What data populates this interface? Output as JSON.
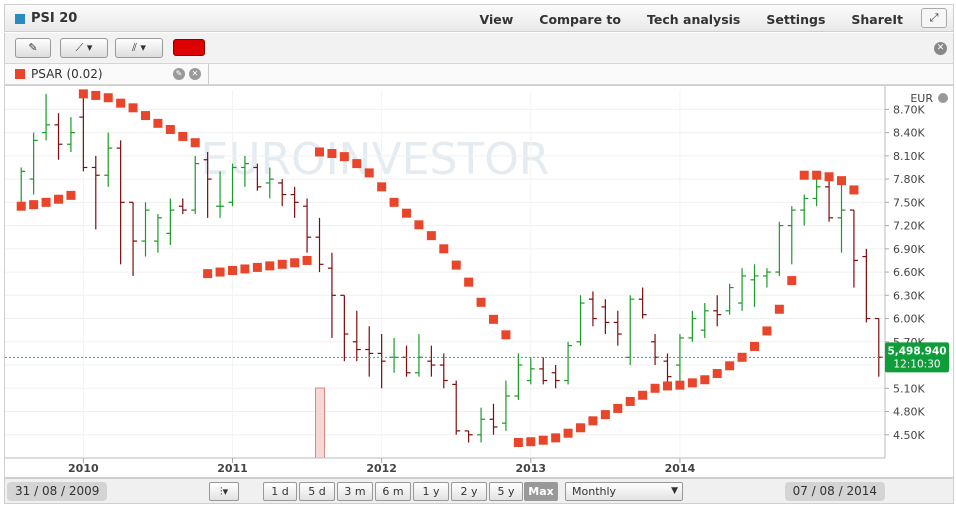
{
  "header": {
    "title": "PSI 20",
    "menu": [
      "View",
      "Compare to",
      "Tech analysis",
      "Settings",
      "ShareIt"
    ],
    "fullscreen_icon": "expand-icon"
  },
  "indicator": {
    "label": "PSAR (0.02)",
    "color": "#e8452a"
  },
  "watermark": "EUROINVESTOR",
  "bottom": {
    "start_date": "31 / 08 / 2009",
    "end_date": "07 / 08 / 2014",
    "ranges": [
      "1 d",
      "5 d",
      "3 m",
      "6 m",
      "1 y",
      "2 y",
      "5 y",
      "Max"
    ],
    "active_range": "Max",
    "interval": "Monthly"
  },
  "chart_data": {
    "type": "ohlc",
    "currency": "EUR",
    "last_value_label": "5,498.940",
    "last_time_label": "12:10:30",
    "last_value": 5498.94,
    "ylim": [
      4200,
      8950
    ],
    "yticks": [
      4500,
      4800,
      5100,
      5400,
      5700,
      6000,
      6300,
      6600,
      6900,
      7200,
      7500,
      7800,
      8100,
      8400,
      8700
    ],
    "ytick_labels": [
      "4.50K",
      "4.80K",
      "5.10K",
      "5.40K",
      "5.70K",
      "6.00K",
      "6.30K",
      "6.60K",
      "6.90K",
      "7.20K",
      "7.50K",
      "7.80K",
      "8.10K",
      "8.40K",
      "8.70K"
    ],
    "x_range": [
      "2009-08",
      "2014-08"
    ],
    "x_labels": [
      {
        "date": "2010-01",
        "label": "2010"
      },
      {
        "date": "2011-01",
        "label": "2011"
      },
      {
        "date": "2012-01",
        "label": "2012"
      },
      {
        "date": "2013-01",
        "label": "2013"
      },
      {
        "date": "2014-01",
        "label": "2014"
      }
    ],
    "bars": [
      {
        "d": "2009-08",
        "o": 7450,
        "h": 7950,
        "l": 7400,
        "c": 7900
      },
      {
        "d": "2009-09",
        "o": 7800,
        "h": 8400,
        "l": 7600,
        "c": 8300
      },
      {
        "d": "2009-10",
        "o": 8400,
        "h": 8900,
        "l": 8300,
        "c": 8500
      },
      {
        "d": "2009-11",
        "o": 8500,
        "h": 8650,
        "l": 8050,
        "c": 8250
      },
      {
        "d": "2009-12",
        "o": 8250,
        "h": 8600,
        "l": 8150,
        "c": 8400
      },
      {
        "d": "2010-01",
        "o": 8600,
        "h": 8950,
        "l": 7900,
        "c": 7950
      },
      {
        "d": "2010-02",
        "o": 7950,
        "h": 8100,
        "l": 7150,
        "c": 7850
      },
      {
        "d": "2010-03",
        "o": 7850,
        "h": 8400,
        "l": 7700,
        "c": 8200
      },
      {
        "d": "2010-04",
        "o": 8200,
        "h": 8300,
        "l": 6700,
        "c": 7500
      },
      {
        "d": "2010-05",
        "o": 7500,
        "h": 7500,
        "l": 6550,
        "c": 7000
      },
      {
        "d": "2010-06",
        "o": 7000,
        "h": 7500,
        "l": 6800,
        "c": 7400
      },
      {
        "d": "2010-07",
        "o": 7000,
        "h": 7350,
        "l": 6850,
        "c": 7300
      },
      {
        "d": "2010-08",
        "o": 7100,
        "h": 7550,
        "l": 6950,
        "c": 7400
      },
      {
        "d": "2010-09",
        "o": 7450,
        "h": 7550,
        "l": 7350,
        "c": 7400
      },
      {
        "d": "2010-10",
        "o": 7400,
        "h": 8100,
        "l": 7350,
        "c": 8000
      },
      {
        "d": "2010-11",
        "o": 8050,
        "h": 8150,
        "l": 7300,
        "c": 7800
      },
      {
        "d": "2010-12",
        "o": 7450,
        "h": 7900,
        "l": 7300,
        "c": 7450
      },
      {
        "d": "2011-01",
        "o": 7500,
        "h": 8000,
        "l": 7450,
        "c": 7950
      },
      {
        "d": "2011-02",
        "o": 7950,
        "h": 8100,
        "l": 7700,
        "c": 8000
      },
      {
        "d": "2011-03",
        "o": 7950,
        "h": 8000,
        "l": 7650,
        "c": 7700
      },
      {
        "d": "2011-04",
        "o": 7750,
        "h": 7950,
        "l": 7550,
        "c": 7800
      },
      {
        "d": "2011-05",
        "o": 7750,
        "h": 7800,
        "l": 7450,
        "c": 7600
      },
      {
        "d": "2011-06",
        "o": 7600,
        "h": 7700,
        "l": 7300,
        "c": 7500
      },
      {
        "d": "2011-07",
        "o": 7450,
        "h": 7550,
        "l": 6850,
        "c": 7050
      },
      {
        "d": "2011-08",
        "o": 7050,
        "h": 7300,
        "l": 6600,
        "c": 6700
      },
      {
        "d": "2011-09",
        "o": 6650,
        "h": 6850,
        "l": 5750,
        "c": 6300
      },
      {
        "d": "2011-10",
        "o": 6300,
        "h": 6300,
        "l": 5450,
        "c": 5800
      },
      {
        "d": "2011-11",
        "o": 5700,
        "h": 6100,
        "l": 5450,
        "c": 5600
      },
      {
        "d": "2011-12",
        "o": 5600,
        "h": 5900,
        "l": 5250,
        "c": 5550
      },
      {
        "d": "2012-01",
        "o": 5550,
        "h": 5800,
        "l": 5100,
        "c": 5450
      },
      {
        "d": "2012-02",
        "o": 5500,
        "h": 5750,
        "l": 5300,
        "c": 5500
      },
      {
        "d": "2012-03",
        "o": 5500,
        "h": 5650,
        "l": 5250,
        "c": 5300
      },
      {
        "d": "2012-04",
        "o": 5300,
        "h": 5800,
        "l": 5250,
        "c": 5500
      },
      {
        "d": "2012-05",
        "o": 5450,
        "h": 5650,
        "l": 5250,
        "c": 5400
      },
      {
        "d": "2012-06",
        "o": 5400,
        "h": 5550,
        "l": 5100,
        "c": 5200
      },
      {
        "d": "2012-07",
        "o": 5150,
        "h": 5200,
        "l": 4500,
        "c": 4550
      },
      {
        "d": "2012-08",
        "o": 4550,
        "h": 4550,
        "l": 4400,
        "c": 4500
      },
      {
        "d": "2012-09",
        "o": 4500,
        "h": 4850,
        "l": 4400,
        "c": 4700
      },
      {
        "d": "2012-10",
        "o": 4700,
        "h": 4900,
        "l": 4500,
        "c": 4600
      },
      {
        "d": "2012-11",
        "o": 4650,
        "h": 5200,
        "l": 4550,
        "c": 5000
      },
      {
        "d": "2012-12",
        "o": 5000,
        "h": 5550,
        "l": 4950,
        "c": 5400
      },
      {
        "d": "2013-01",
        "o": 5200,
        "h": 5500,
        "l": 5150,
        "c": 5350
      },
      {
        "d": "2013-02",
        "o": 5350,
        "h": 5500,
        "l": 5150,
        "c": 5200
      },
      {
        "d": "2013-03",
        "o": 5300,
        "h": 5400,
        "l": 5100,
        "c": 5200
      },
      {
        "d": "2013-04",
        "o": 5200,
        "h": 5700,
        "l": 5150,
        "c": 5650
      },
      {
        "d": "2013-05",
        "o": 5700,
        "h": 6300,
        "l": 5650,
        "c": 6200
      },
      {
        "d": "2013-06",
        "o": 6250,
        "h": 6350,
        "l": 5900,
        "c": 6000
      },
      {
        "d": "2013-07",
        "o": 6150,
        "h": 6250,
        "l": 5800,
        "c": 5950
      },
      {
        "d": "2013-08",
        "o": 5950,
        "h": 6100,
        "l": 5650,
        "c": 5800
      },
      {
        "d": "2013-09",
        "o": 5500,
        "h": 6300,
        "l": 5400,
        "c": 6250
      },
      {
        "d": "2013-10",
        "o": 6250,
        "h": 6400,
        "l": 6000,
        "c": 6050
      },
      {
        "d": "2013-11",
        "o": 5700,
        "h": 5800,
        "l": 5400,
        "c": 5500
      },
      {
        "d": "2013-12",
        "o": 5450,
        "h": 5550,
        "l": 5100,
        "c": 5250
      },
      {
        "d": "2014-01",
        "o": 5400,
        "h": 5800,
        "l": 5100,
        "c": 5750
      },
      {
        "d": "2014-02",
        "o": 5750,
        "h": 6100,
        "l": 5700,
        "c": 6000
      },
      {
        "d": "2014-03",
        "o": 5850,
        "h": 6200,
        "l": 5750,
        "c": 6100
      },
      {
        "d": "2014-04",
        "o": 6100,
        "h": 6300,
        "l": 5900,
        "c": 6050
      },
      {
        "d": "2014-05",
        "o": 6100,
        "h": 6450,
        "l": 6050,
        "c": 6400
      },
      {
        "d": "2014-06",
        "o": 6200,
        "h": 6650,
        "l": 6100,
        "c": 6550
      },
      {
        "d": "2014-07",
        "o": 6500,
        "h": 6700,
        "l": 6150,
        "c": 6550
      },
      {
        "d": "2014-08",
        "o": 6550,
        "h": 6650,
        "l": 6400,
        "c": 6600
      },
      {
        "d": "2014-09",
        "o": 6600,
        "h": 7250,
        "l": 6550,
        "c": 7200
      },
      {
        "d": "2014-10",
        "o": 7200,
        "h": 7450,
        "l": 6700,
        "c": 7400
      },
      {
        "d": "2014-11",
        "o": 7400,
        "h": 7600,
        "l": 7200,
        "c": 7550
      },
      {
        "d": "2014-12",
        "o": 7550,
        "h": 7800,
        "l": 7450,
        "c": 7700
      },
      {
        "d": "2015-01",
        "o": 7700,
        "h": 7850,
        "l": 7250,
        "c": 7300
      },
      {
        "d": "2015-02",
        "o": 7300,
        "h": 7750,
        "l": 6850,
        "c": 7400
      },
      {
        "d": "2015-03",
        "o": 7400,
        "h": 7400,
        "l": 6400,
        "c": 6750
      },
      {
        "d": "2015-04",
        "o": 6800,
        "h": 6900,
        "l": 5950,
        "c": 6000
      },
      {
        "d": "2015-05",
        "o": 6000,
        "h": 6000,
        "l": 5250,
        "c": 5500
      }
    ],
    "psar": [
      {
        "i": 0,
        "v": 7450
      },
      {
        "i": 1,
        "v": 7470
      },
      {
        "i": 2,
        "v": 7500
      },
      {
        "i": 3,
        "v": 7540
      },
      {
        "i": 4,
        "v": 7590
      },
      {
        "i": 5,
        "v": 8900
      },
      {
        "i": 6,
        "v": 8880
      },
      {
        "i": 7,
        "v": 8850
      },
      {
        "i": 8,
        "v": 8780
      },
      {
        "i": 9,
        "v": 8720
      },
      {
        "i": 10,
        "v": 8620
      },
      {
        "i": 11,
        "v": 8520
      },
      {
        "i": 12,
        "v": 8440
      },
      {
        "i": 13,
        "v": 8350
      },
      {
        "i": 14,
        "v": 8270
      },
      {
        "i": 15,
        "v": 6580
      },
      {
        "i": 16,
        "v": 6600
      },
      {
        "i": 17,
        "v": 6620
      },
      {
        "i": 18,
        "v": 6640
      },
      {
        "i": 19,
        "v": 6660
      },
      {
        "i": 20,
        "v": 6680
      },
      {
        "i": 21,
        "v": 6700
      },
      {
        "i": 22,
        "v": 6720
      },
      {
        "i": 23,
        "v": 6750
      },
      {
        "i": 24,
        "v": 8150
      },
      {
        "i": 25,
        "v": 8130
      },
      {
        "i": 26,
        "v": 8090
      },
      {
        "i": 27,
        "v": 8000
      },
      {
        "i": 28,
        "v": 7880
      },
      {
        "i": 29,
        "v": 7700
      },
      {
        "i": 30,
        "v": 7500
      },
      {
        "i": 31,
        "v": 7360
      },
      {
        "i": 32,
        "v": 7210
      },
      {
        "i": 33,
        "v": 7070
      },
      {
        "i": 34,
        "v": 6900
      },
      {
        "i": 35,
        "v": 6690
      },
      {
        "i": 36,
        "v": 6470
      },
      {
        "i": 37,
        "v": 6210
      },
      {
        "i": 38,
        "v": 5990
      },
      {
        "i": 39,
        "v": 5790
      },
      {
        "i": 40,
        "v": 4400
      },
      {
        "i": 41,
        "v": 4410
      },
      {
        "i": 42,
        "v": 4430
      },
      {
        "i": 43,
        "v": 4460
      },
      {
        "i": 44,
        "v": 4520
      },
      {
        "i": 45,
        "v": 4590
      },
      {
        "i": 46,
        "v": 4680
      },
      {
        "i": 47,
        "v": 4760
      },
      {
        "i": 48,
        "v": 4840
      },
      {
        "i": 49,
        "v": 4930
      },
      {
        "i": 50,
        "v": 5010
      },
      {
        "i": 51,
        "v": 5100
      },
      {
        "i": 52,
        "v": 5130
      },
      {
        "i": 53,
        "v": 5140
      },
      {
        "i": 54,
        "v": 5170
      },
      {
        "i": 55,
        "v": 5210
      },
      {
        "i": 56,
        "v": 5290
      },
      {
        "i": 57,
        "v": 5390
      },
      {
        "i": 58,
        "v": 5500
      },
      {
        "i": 59,
        "v": 5640
      },
      {
        "i": 60,
        "v": 5840
      },
      {
        "i": 61,
        "v": 6120
      },
      {
        "i": 62,
        "v": 6490
      },
      {
        "i": 63,
        "v": 7850
      },
      {
        "i": 64,
        "v": 7850
      },
      {
        "i": 65,
        "v": 7830
      },
      {
        "i": 66,
        "v": 7780
      },
      {
        "i": 67,
        "v": 7660
      }
    ],
    "volume_spike": {
      "i": 24,
      "label": ""
    },
    "x_offset_months": -0.5
  }
}
